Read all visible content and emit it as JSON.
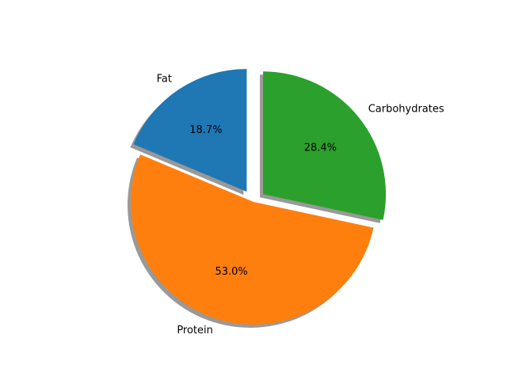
{
  "chart_data": {
    "type": "pie",
    "slices": [
      {
        "label": "Fat",
        "value": 18.7,
        "pct_label": "18.7%",
        "color": "#1f77b4",
        "exploded": true
      },
      {
        "label": "Protein",
        "value": 53.0,
        "pct_label": "53.0%",
        "color": "#ff7f0e",
        "exploded": false
      },
      {
        "label": "Carbohydrates",
        "value": 28.4,
        "pct_label": "28.4%",
        "color": "#2ca02c",
        "exploded": true
      }
    ],
    "start_angle": 90,
    "direction": "counterclockwise",
    "shadow": true
  }
}
